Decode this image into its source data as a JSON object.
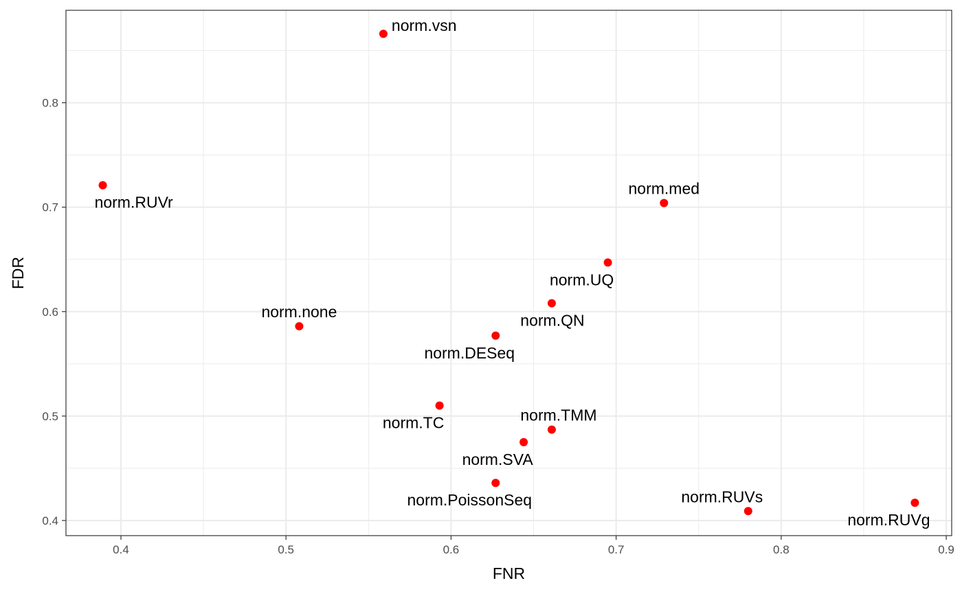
{
  "chart_data": {
    "type": "scatter",
    "title": "",
    "xlabel": "FNR",
    "ylabel": "FDR",
    "xlim": [
      0.3667,
      0.9033
    ],
    "ylim": [
      0.3855,
      0.8885
    ],
    "x_ticks": [
      0.4,
      0.5,
      0.6,
      0.7,
      0.8,
      0.9
    ],
    "y_ticks": [
      0.4,
      0.5,
      0.6,
      0.7,
      0.8
    ],
    "x_tick_labels": [
      "0.4",
      "0.5",
      "0.6",
      "0.7",
      "0.8",
      "0.9"
    ],
    "y_tick_labels": [
      "0.4",
      "0.5",
      "0.6",
      "0.7",
      "0.8"
    ],
    "grid": true,
    "point_color": "#ff0000",
    "points": [
      {
        "label": "norm.vsn",
        "x": 0.559,
        "y": 0.866,
        "label_pos": "upper-right"
      },
      {
        "label": "norm.RUVr",
        "x": 0.389,
        "y": 0.721,
        "label_pos": "below-right"
      },
      {
        "label": "norm.med",
        "x": 0.729,
        "y": 0.704,
        "label_pos": "above"
      },
      {
        "label": "norm.UQ",
        "x": 0.695,
        "y": 0.647,
        "label_pos": "below"
      },
      {
        "label": "norm.none",
        "x": 0.508,
        "y": 0.586,
        "label_pos": "above"
      },
      {
        "label": "norm.QN",
        "x": 0.661,
        "y": 0.608,
        "label_pos": "below-left"
      },
      {
        "label": "norm.DESeq",
        "x": 0.627,
        "y": 0.577,
        "label_pos": "below-left"
      },
      {
        "label": "norm.TC",
        "x": 0.593,
        "y": 0.51,
        "label_pos": "below-left"
      },
      {
        "label": "norm.TMM",
        "x": 0.661,
        "y": 0.487,
        "label_pos": "above-right"
      },
      {
        "label": "norm.SVA",
        "x": 0.644,
        "y": 0.475,
        "label_pos": "below-left"
      },
      {
        "label": "norm.PoissonSeq",
        "x": 0.627,
        "y": 0.436,
        "label_pos": "below-left"
      },
      {
        "label": "norm.RUVs",
        "x": 0.78,
        "y": 0.409,
        "label_pos": "above-left"
      },
      {
        "label": "norm.RUVg",
        "x": 0.881,
        "y": 0.417,
        "label_pos": "below-left"
      }
    ]
  }
}
